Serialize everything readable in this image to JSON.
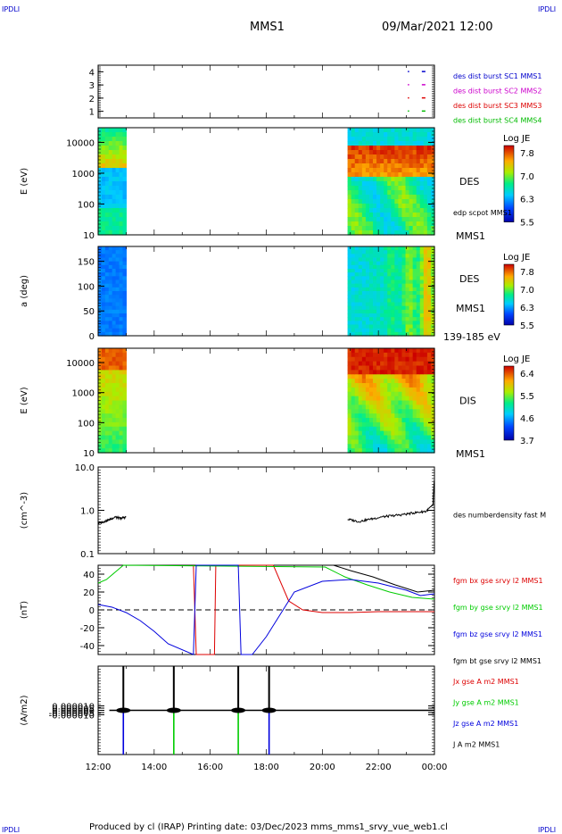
{
  "header": {
    "corner_tl": "IPDLI",
    "corner_tr": "IPDLI",
    "corner_bl": "IPDLI",
    "corner_br": "IPDLI",
    "mission": "MMS1",
    "datetime": "09/Mar/2021 12:00"
  },
  "footer": {
    "text": "Produced by cl (IRAP)   Printing date: 03/Dec/2023   mms_mms1_srvy_vue_web1.cl"
  },
  "colors": {
    "mms1": "#0000cc",
    "mms2": "#cc00cc",
    "mms3": "#dd0000",
    "mms4": "#00bb00",
    "bx": "#dd0000",
    "by": "#00cc00",
    "bz": "#0000dd",
    "bt": "#000000"
  },
  "chart_data": [
    {
      "id": "burst",
      "type": "scatter",
      "x_range": [
        12,
        24
      ],
      "ylim": [
        0.5,
        4.5
      ],
      "yticks": [
        "1",
        "2",
        "3",
        "4"
      ],
      "series": [
        {
          "name": "des dist burst SC1 MMS1",
          "color": "#0000cc",
          "x": [
            23.05,
            23.55
          ],
          "y": [
            4,
            4
          ]
        },
        {
          "name": "des dist burst SC2 MMS2",
          "color": "#cc00cc",
          "x": [
            23.05,
            23.55
          ],
          "y": [
            3,
            3
          ]
        },
        {
          "name": "des dist burst SC3 MMS3",
          "color": "#dd0000",
          "x": [
            23.05,
            23.55
          ],
          "y": [
            2,
            2
          ]
        },
        {
          "name": "des dist burst SC4 MMS4",
          "color": "#00bb00",
          "x": [
            23.05,
            23.55
          ],
          "y": [
            1,
            1
          ]
        }
      ]
    },
    {
      "id": "des_energy",
      "type": "heatmap",
      "ylabel": "E (eV)",
      "yscale": "log",
      "ylim": [
        10,
        30000
      ],
      "yticks": [
        "10",
        "100",
        "1000",
        "10000"
      ],
      "segments": [
        [
          12.0,
          13.0
        ],
        [
          20.9,
          24.0
        ]
      ],
      "colorbar": {
        "title": "Log JE",
        "ticks": [
          "7.8",
          "7.0",
          "6.3",
          "5.5"
        ]
      },
      "label_right": "DES",
      "label_right2": "edp scpot MMS1",
      "label_bottom": "MMS1"
    },
    {
      "id": "des_pitch",
      "type": "heatmap",
      "ylabel": "a (deg)",
      "ylim": [
        0,
        180
      ],
      "yticks": [
        "0",
        "50",
        "100",
        "150"
      ],
      "segments": [
        [
          12.0,
          13.0
        ],
        [
          20.9,
          24.0
        ]
      ],
      "colorbar": {
        "title": "Log JE",
        "ticks": [
          "7.8",
          "7.0",
          "6.3",
          "5.5"
        ]
      },
      "label_right": "DES",
      "label_right2": "MMS1",
      "label_bottom": "139-185 eV"
    },
    {
      "id": "dis_energy",
      "type": "heatmap",
      "ylabel": "E (eV)",
      "yscale": "log",
      "ylim": [
        10,
        30000
      ],
      "yticks": [
        "10",
        "100",
        "1000",
        "10000"
      ],
      "segments": [
        [
          12.0,
          13.0
        ],
        [
          20.9,
          24.0
        ]
      ],
      "colorbar": {
        "title": "Log JE",
        "ticks": [
          "6.4",
          "5.5",
          "4.6",
          "3.7"
        ]
      },
      "label_right": "DIS",
      "label_bottom": "MMS1"
    },
    {
      "id": "density",
      "type": "line",
      "ylabel": "(cm^-3)",
      "yscale": "log",
      "ylim": [
        0.1,
        10.0
      ],
      "yticks": [
        "0.1",
        "1.0",
        "10.0"
      ],
      "series": [
        {
          "name": "des numberdensity fast M",
          "color": "#000000",
          "segments": [
            {
              "x": [
                12.0,
                12.2,
                12.4,
                12.6,
                12.8,
                13.0
              ],
              "y": [
                0.5,
                0.55,
                0.6,
                0.7,
                0.65,
                0.7
              ]
            },
            {
              "x": [
                20.9,
                21.3,
                21.7,
                22.1,
                22.5,
                22.9,
                23.3,
                23.7,
                23.95,
                24.0
              ],
              "y": [
                0.62,
                0.55,
                0.62,
                0.7,
                0.75,
                0.8,
                0.88,
                0.95,
                1.3,
                5.0
              ]
            }
          ]
        }
      ]
    },
    {
      "id": "magnetic_field",
      "type": "line",
      "ylabel": "(nT)",
      "ylim": [
        -50,
        50
      ],
      "yticks": [
        "-40",
        "-20",
        "0",
        "20",
        "40"
      ],
      "series": [
        {
          "name": "fgm bx gse srvy l2 MMS1",
          "color": "#dd0000",
          "x": [
            15.4,
            15.5,
            16.15,
            16.2,
            18.25,
            18.8,
            19.3,
            20.0,
            21.0,
            22.0,
            23.0,
            24.0
          ],
          "y": [
            50,
            -50,
            -50,
            50,
            50,
            10,
            0,
            -3,
            -3,
            -2,
            -2,
            -2
          ]
        },
        {
          "name": "fgm by gse srvy l2 MMS1",
          "color": "#00cc00",
          "x": [
            12.0,
            12.3,
            12.6,
            12.9,
            20.1,
            20.8,
            21.6,
            22.4,
            23.2,
            24.0
          ],
          "y": [
            30,
            34,
            42,
            50,
            48,
            37,
            28,
            20,
            14,
            12
          ]
        },
        {
          "name": "fgm bz gse srvy l2 MMS1",
          "color": "#0000dd",
          "x": [
            12.0,
            12.5,
            13.0,
            13.5,
            14.0,
            14.5,
            15.4,
            15.5,
            17.0,
            17.1,
            17.5,
            18.0,
            18.5,
            19.0,
            20.0,
            21.0,
            22.0,
            23.0,
            23.5,
            24.0
          ],
          "y": [
            6,
            3,
            -3,
            -12,
            -24,
            -38,
            -50,
            50,
            50,
            -50,
            -50,
            -30,
            -5,
            20,
            32,
            34,
            30,
            22,
            16,
            18
          ]
        },
        {
          "name": "fgm bt gse srvy l2 MMS1",
          "color": "#000000",
          "x": [
            20.4,
            21.0,
            21.8,
            22.6,
            23.4,
            24.0
          ],
          "y": [
            50,
            44,
            37,
            28,
            20,
            22
          ]
        }
      ]
    },
    {
      "id": "current_density",
      "type": "line",
      "ylabel": "(A/m2)",
      "ylim": [
        -0.0001,
        0.0001
      ],
      "yticks": [
        "-0.000010",
        "-0.000005",
        "0.000000",
        "0.000005",
        "0.000010"
      ],
      "xticks": [
        "12:00",
        "14:00",
        "16:00",
        "18:00",
        "20:00",
        "22:00",
        "00:00"
      ],
      "x_range": [
        12,
        24
      ],
      "series": [
        {
          "name": "Jx gse A m2 MMS1",
          "color": "#dd0000"
        },
        {
          "name": "Jy gse A m2 MMS1",
          "color": "#00cc00"
        },
        {
          "name": "Jz gse A m2 MMS1",
          "color": "#0000dd"
        },
        {
          "name": "J A m2 MMS1",
          "color": "#000000"
        }
      ],
      "spikes": [
        {
          "x": 12.9,
          "top": 0.0001,
          "bottom": -0.0001,
          "bottom_color": "#0000dd"
        },
        {
          "x": 14.7,
          "top": 0.0001,
          "bottom": -0.0001,
          "bottom_color": "#00cc00"
        },
        {
          "x": 17.0,
          "top": 0.0001,
          "bottom": -0.0001,
          "bottom_color": "#00cc00"
        },
        {
          "x": 18.1,
          "top": 0.0001,
          "bottom": -0.0001,
          "bottom_color": "#0000dd"
        }
      ]
    }
  ]
}
